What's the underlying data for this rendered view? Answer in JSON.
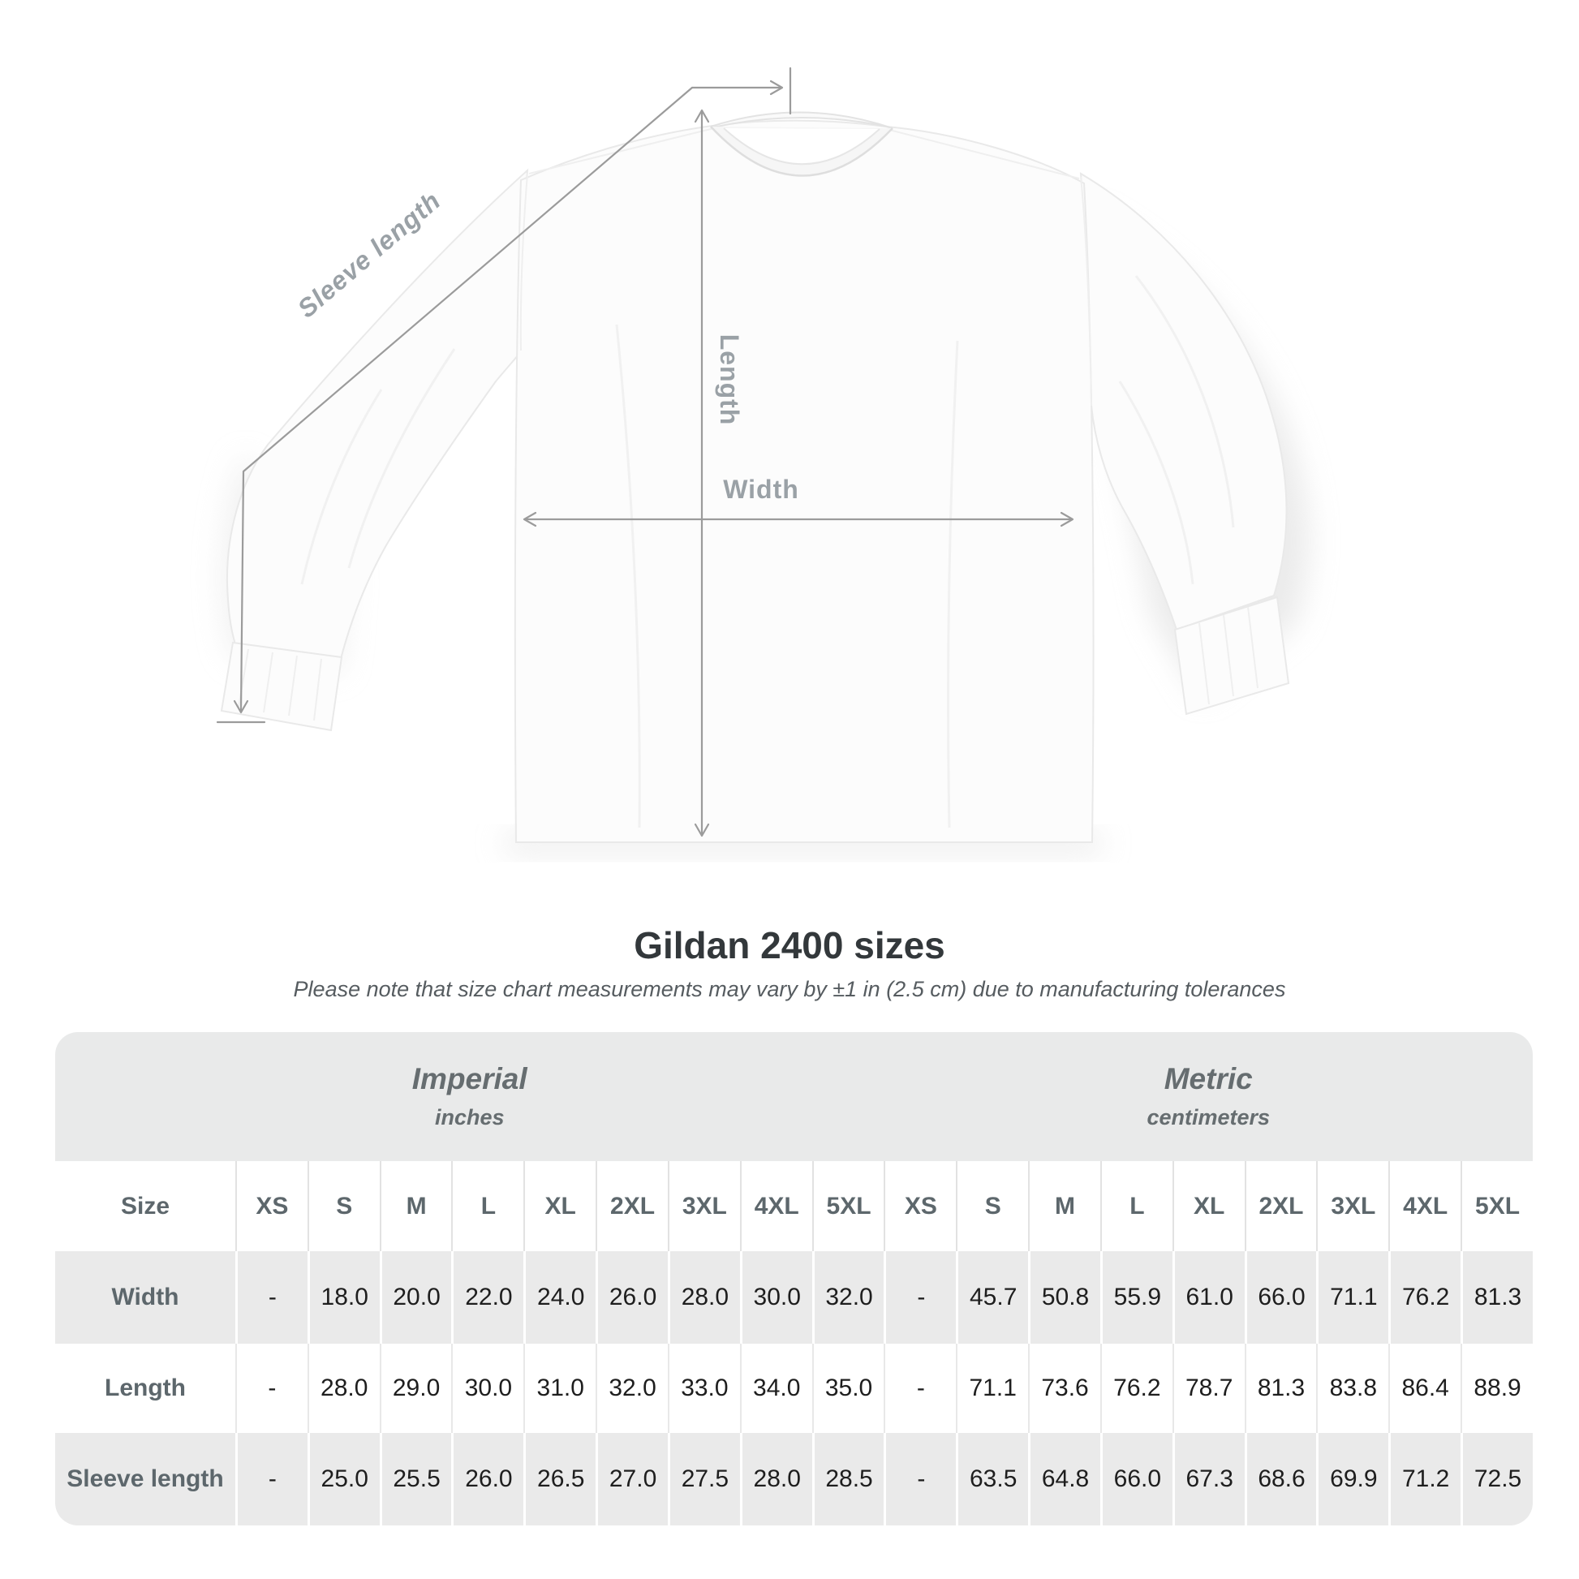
{
  "diagram": {
    "labels": {
      "sleeve_length": "Sleeve length",
      "length": "Length",
      "width": "Width"
    }
  },
  "heading": {
    "title": "Gildan 2400 sizes",
    "note": "Please note that size chart measurements may vary by ±1 in (2.5 cm) due to manufacturing tolerances"
  },
  "chart_data": {
    "type": "table",
    "title": "Gildan 2400 sizes",
    "size_column_header": "Size",
    "sizes": [
      "XS",
      "S",
      "M",
      "L",
      "XL",
      "2XL",
      "3XL",
      "4XL",
      "5XL"
    ],
    "groups": [
      {
        "title": "Imperial",
        "unit": "inches"
      },
      {
        "title": "Metric",
        "unit": "centimeters"
      }
    ],
    "rows": [
      {
        "label": "Width",
        "imperial": [
          "-",
          "18.0",
          "20.0",
          "22.0",
          "24.0",
          "26.0",
          "28.0",
          "30.0",
          "32.0"
        ],
        "metric": [
          "-",
          "45.7",
          "50.8",
          "55.9",
          "61.0",
          "66.0",
          "71.1",
          "76.2",
          "81.3"
        ]
      },
      {
        "label": "Length",
        "imperial": [
          "-",
          "28.0",
          "29.0",
          "30.0",
          "31.0",
          "32.0",
          "33.0",
          "34.0",
          "35.0"
        ],
        "metric": [
          "-",
          "71.1",
          "73.6",
          "76.2",
          "78.7",
          "81.3",
          "83.8",
          "86.4",
          "88.9"
        ]
      },
      {
        "label": "Sleeve length",
        "imperial": [
          "-",
          "25.0",
          "25.5",
          "26.0",
          "26.5",
          "27.0",
          "27.5",
          "28.0",
          "28.5"
        ],
        "metric": [
          "-",
          "63.5",
          "64.8",
          "66.0",
          "67.3",
          "68.6",
          "69.9",
          "71.2",
          "72.5"
        ]
      }
    ]
  },
  "colors": {
    "annotation_line": "#9b9b9b",
    "annotation_label": "#9aa1a6",
    "title_text": "#33383b",
    "note_text": "#565c60",
    "header_text": "#5d676c",
    "value_text": "#1e1e1e",
    "stripe": "#eaeaea"
  }
}
